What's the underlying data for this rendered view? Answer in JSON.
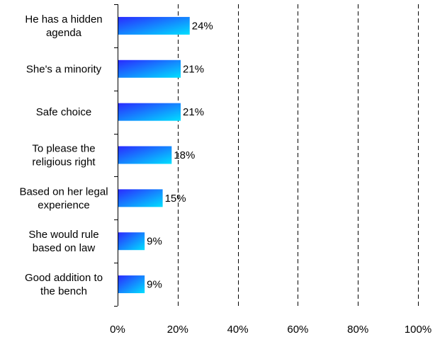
{
  "chart_data": {
    "type": "bar",
    "orientation": "horizontal",
    "categories": [
      [
        "He has a hidden",
        "agenda"
      ],
      [
        "She's a minority"
      ],
      [
        "Safe choice"
      ],
      [
        "To please the",
        "religious right"
      ],
      [
        "Based on her legal",
        "experience"
      ],
      [
        "She would rule",
        "based on law"
      ],
      [
        "Good addition to",
        "the bench"
      ]
    ],
    "values": [
      24,
      21,
      21,
      18,
      15,
      9,
      9
    ],
    "data_labels": [
      "24%",
      "21%",
      "21%",
      "18%",
      "15%",
      "9%",
      "9%"
    ],
    "xlim": [
      0,
      100
    ],
    "x_ticks": [
      0,
      20,
      40,
      60,
      80,
      100
    ],
    "x_tick_labels": [
      "0%",
      "20%",
      "40%",
      "60%",
      "80%",
      "100%"
    ],
    "grid": "vertical dashed",
    "legend": "none",
    "bar_gradient": [
      "#2a2aff",
      "#00e0ff"
    ],
    "title": "",
    "xlabel": "",
    "ylabel": ""
  }
}
